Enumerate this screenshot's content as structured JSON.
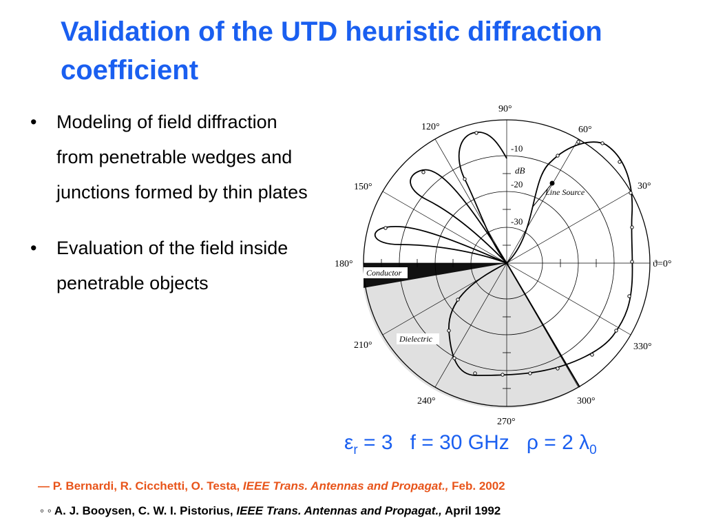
{
  "slide": {
    "title": "Validation of the UTD heuristic diffraction coefficient",
    "bullets": [
      "Modeling of field diffraction from penetrable wedges and junctions formed by thin plates",
      "Evaluation of the field inside penetrable objects"
    ],
    "bullet_char": "•"
  },
  "figure": {
    "angle_labels": [
      "90°",
      "60°",
      "120°",
      "30°",
      "150°",
      "180°",
      "ϑ=0°",
      "210°",
      "330°",
      "240°",
      "300°",
      "270°"
    ],
    "radial_labels": [
      "-10",
      "dB",
      "-20",
      "-30"
    ],
    "annotations": {
      "line_source": "Line Source",
      "conductor": "Conductor",
      "dielectric": "Dielectric"
    },
    "colors": {
      "dielectric_fill": "#e0e0e0",
      "conductor_fill": "#111111"
    }
  },
  "params": {
    "eps": "ε",
    "eps_sub": "r",
    "eps_rest": " = 3   f = 30 GHz   ρ = 2 λ",
    "lambda_sub": "0"
  },
  "references": {
    "ref1": {
      "prefix": "— P. Bernardi, R. Cicchetti, O. Testa, ",
      "journal": "IEEE Trans. Antennas and Propagat.,",
      "date": " Feb. 2002"
    },
    "ref2": {
      "prefix": "◦ ◦ A. J. Booysen, C. W. I. Pistorius, ",
      "journal": "IEEE Trans. Antennas and Propagat.,",
      "date": " April 1992"
    }
  },
  "style": {
    "title_color": "#1a5ff0",
    "ref1_color": "#e8541a"
  }
}
